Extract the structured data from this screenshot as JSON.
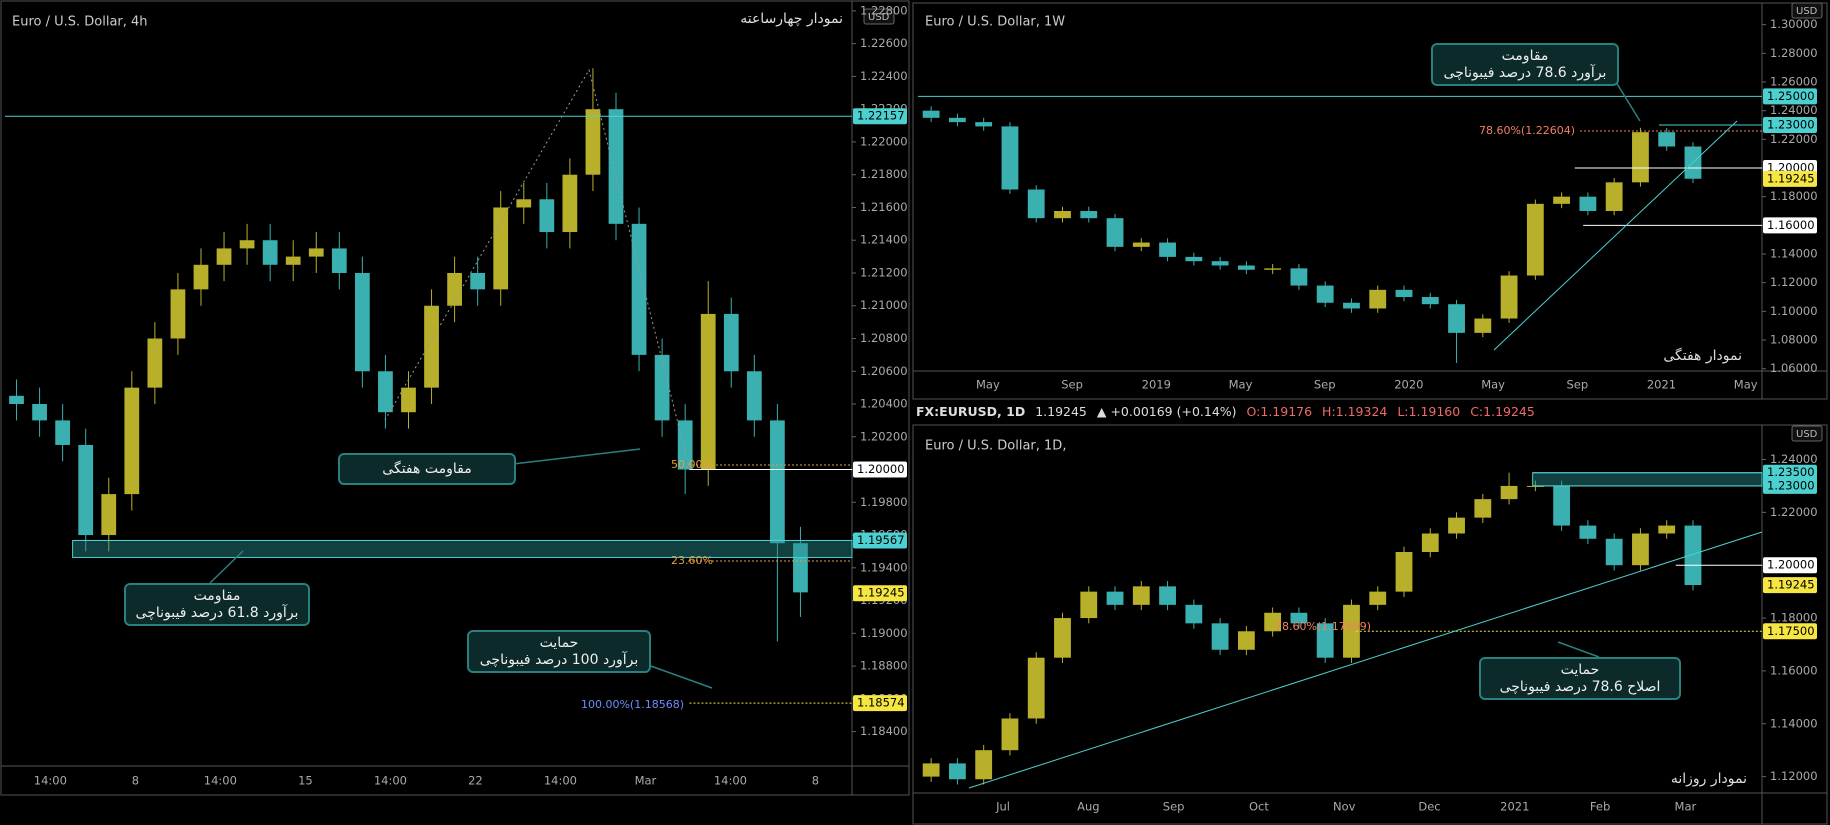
{
  "header": {
    "symbol": "FX:EURUSD, 1D",
    "last": "1.19245",
    "change": "▲ +0.00169 (+0.14%)",
    "ohlc": [
      "O:1.19176",
      "H:1.19324",
      "L:1.19160",
      "C:1.19245"
    ]
  },
  "chart_data": [
    {
      "type": "candlestick",
      "title": "Euro / U.S. Dollar, 4h",
      "subtitle": "نمودار چهارساعته",
      "currency": "USD",
      "ylim": [
        1.1819,
        1.2283
      ],
      "yticks": [
        {
          "value": 1.184,
          "label": "1.18400"
        },
        {
          "value": 1.186,
          "label": "1.18600"
        },
        {
          "value": 1.188,
          "label": "1.18800"
        },
        {
          "value": 1.19,
          "label": "1.19000"
        },
        {
          "value": 1.192,
          "label": "1.19200"
        },
        {
          "value": 1.194,
          "label": "1.19400"
        },
        {
          "value": 1.196,
          "label": "1.19600"
        },
        {
          "value": 1.198,
          "label": "1.19800"
        },
        {
          "value": 1.2,
          "label": "1.20000"
        },
        {
          "value": 1.202,
          "label": "1.20200"
        },
        {
          "value": 1.204,
          "label": "1.20400"
        },
        {
          "value": 1.206,
          "label": "1.20600"
        },
        {
          "value": 1.208,
          "label": "1.20800"
        },
        {
          "value": 1.21,
          "label": "1.21000"
        },
        {
          "value": 1.212,
          "label": "1.21200"
        },
        {
          "value": 1.214,
          "label": "1.21400"
        },
        {
          "value": 1.216,
          "label": "1.21600"
        },
        {
          "value": 1.218,
          "label": "1.21800"
        },
        {
          "value": 1.22,
          "label": "1.22000"
        },
        {
          "value": 1.222,
          "label": "1.22200"
        },
        {
          "value": 1.224,
          "label": "1.22400"
        },
        {
          "value": 1.226,
          "label": "1.22600"
        },
        {
          "value": 1.228,
          "label": "1.22800"
        }
      ],
      "xlabels": [
        "14:00",
        "8",
        "14:00",
        "15",
        "14:00",
        "22",
        "14:00",
        "Mar",
        "14:00",
        "8"
      ],
      "up_color": "#b8b02a",
      "down_color": "#3ab0b0",
      "open": [
        1.2045,
        1.204,
        1.203,
        1.2015,
        1.196,
        1.1985,
        1.205,
        1.208,
        1.211,
        1.2125,
        1.2135,
        1.214,
        1.2125,
        1.213,
        1.2135,
        1.212,
        1.206,
        1.2035,
        1.205,
        1.21,
        1.212,
        1.211,
        1.216,
        1.2165,
        1.2145,
        1.218,
        1.222,
        1.215,
        1.207,
        1.203,
        1.2,
        1.2095,
        1.206,
        1.203,
        1.1955
      ],
      "high": [
        1.2055,
        1.205,
        1.204,
        1.2025,
        1.1995,
        1.206,
        1.209,
        1.212,
        1.2135,
        1.2145,
        1.215,
        1.215,
        1.214,
        1.2145,
        1.2145,
        1.213,
        1.207,
        1.206,
        1.211,
        1.213,
        1.213,
        1.217,
        1.2175,
        1.2175,
        1.219,
        1.2245,
        1.223,
        1.216,
        1.208,
        1.204,
        1.2115,
        1.2105,
        1.207,
        1.204,
        1.1965
      ],
      "low": [
        1.203,
        1.202,
        1.2005,
        1.195,
        1.195,
        1.1975,
        1.204,
        1.207,
        1.21,
        1.2115,
        1.2125,
        1.2115,
        1.2115,
        1.212,
        1.211,
        1.205,
        1.2025,
        1.2025,
        1.204,
        1.209,
        1.21,
        1.21,
        1.215,
        1.2135,
        1.2135,
        1.217,
        1.214,
        1.206,
        1.202,
        1.1985,
        1.199,
        1.205,
        1.202,
        1.1895,
        1.191
      ],
      "close": [
        1.204,
        1.203,
        1.2015,
        1.196,
        1.1985,
        1.205,
        1.208,
        1.211,
        1.2125,
        1.2135,
        1.214,
        1.2125,
        1.213,
        1.2135,
        1.212,
        1.206,
        1.2035,
        1.205,
        1.21,
        1.212,
        1.211,
        1.216,
        1.2165,
        1.2145,
        1.218,
        1.222,
        1.215,
        1.207,
        1.203,
        1.2,
        1.2095,
        1.206,
        1.203,
        1.1955,
        1.1925
      ],
      "levels": [
        {
          "value": 1.22157,
          "label": "1.22157",
          "color": "#4dd0d0"
        },
        {
          "value": 1.2,
          "label": "1.20000",
          "color": "#ffffff"
        },
        {
          "value": 1.19567,
          "label": "1.19567",
          "color": "#4dd0d0"
        },
        {
          "value": 1.19245,
          "label": "1.19245",
          "color": "#f5e642"
        },
        {
          "value": 1.18574,
          "label": "1.18574",
          "color": "#f5e642"
        }
      ],
      "annotations": [
        "50.00%",
        "23.60%",
        "100.00%(1.18568)"
      ],
      "boxes": [
        [
          "مقاومت هفتگی"
        ],
        [
          "مقاومت",
          "برآورد 61.8 درصد فیبوناچی"
        ],
        [
          "حمایت",
          "برآورد 100 درصد فیبوناچی"
        ]
      ]
    },
    {
      "type": "candlestick",
      "title": "Euro / U.S. Dollar, 1W",
      "subtitle": "نمودار هفتگی",
      "currency": "USD",
      "ylim": [
        1.0584,
        1.313
      ],
      "yticks": [
        {
          "value": 1.06,
          "label": "1.06000"
        },
        {
          "value": 1.08,
          "label": "1.08000"
        },
        {
          "value": 1.1,
          "label": "1.10000"
        },
        {
          "value": 1.12,
          "label": "1.12000"
        },
        {
          "value": 1.14,
          "label": "1.14000"
        },
        {
          "value": 1.16,
          "label": "1.16000"
        },
        {
          "value": 1.18,
          "label": "1.18000"
        },
        {
          "value": 1.2,
          "label": "1.20000"
        },
        {
          "value": 1.22,
          "label": "1.22000"
        },
        {
          "value": 1.24,
          "label": "1.24000"
        },
        {
          "value": 1.26,
          "label": "1.26000"
        },
        {
          "value": 1.28,
          "label": "1.28000"
        },
        {
          "value": 1.3,
          "label": "1.30000"
        }
      ],
      "xlabels": [
        "May",
        "Sep",
        "2019",
        "May",
        "Sep",
        "2020",
        "May",
        "Sep",
        "2021",
        "May"
      ],
      "up_color": "#b8b02a",
      "down_color": "#3ab0b0",
      "open": [
        1.24,
        1.235,
        1.232,
        1.229,
        1.185,
        1.165,
        1.17,
        1.165,
        1.145,
        1.148,
        1.138,
        1.135,
        1.132,
        1.129,
        1.13,
        1.118,
        1.106,
        1.102,
        1.115,
        1.11,
        1.105,
        1.085,
        1.095,
        1.125,
        1.175,
        1.18,
        1.17,
        1.19,
        1.225,
        1.215
      ],
      "high": [
        1.243,
        1.238,
        1.235,
        1.232,
        1.188,
        1.173,
        1.173,
        1.168,
        1.151,
        1.151,
        1.141,
        1.138,
        1.135,
        1.133,
        1.133,
        1.121,
        1.109,
        1.118,
        1.118,
        1.113,
        1.108,
        1.098,
        1.128,
        1.178,
        1.183,
        1.183,
        1.193,
        1.228,
        1.228,
        1.218
      ],
      "low": [
        1.232,
        1.229,
        1.226,
        1.182,
        1.162,
        1.162,
        1.162,
        1.142,
        1.142,
        1.135,
        1.132,
        1.129,
        1.126,
        1.126,
        1.115,
        1.103,
        1.099,
        1.099,
        1.107,
        1.102,
        1.064,
        1.082,
        1.092,
        1.122,
        1.172,
        1.167,
        1.167,
        1.187,
        1.212,
        1.1895
      ],
      "close": [
        1.235,
        1.232,
        1.229,
        1.185,
        1.165,
        1.17,
        1.165,
        1.145,
        1.148,
        1.138,
        1.135,
        1.132,
        1.129,
        1.13,
        1.118,
        1.106,
        1.102,
        1.115,
        1.11,
        1.105,
        1.085,
        1.095,
        1.125,
        1.175,
        1.18,
        1.17,
        1.19,
        1.225,
        1.215,
        1.1925
      ],
      "levels": [
        {
          "value": 1.25,
          "label": "1.25000",
          "color": "#4dd0d0"
        },
        {
          "value": 1.23,
          "label": "1.23000",
          "color": "#4dd0d0"
        },
        {
          "value": 1.2,
          "label": "1.20000",
          "color": "#ffffff"
        },
        {
          "value": 1.19245,
          "label": "1.19245",
          "color": "#f5e642"
        },
        {
          "value": 1.16,
          "label": "1.16000",
          "color": "#ffffff"
        }
      ],
      "annotations": [
        "78.60%(1.22604)"
      ],
      "boxes": [
        [
          "مقاومت",
          "برآورد 78.6 درصد فیبوناچی"
        ]
      ]
    },
    {
      "type": "candlestick",
      "title": "Euro / U.S. Dollar, 1D,",
      "subtitle": "نمودار روزانه",
      "currency": "USD",
      "ylim": [
        1.1138,
        1.2523
      ],
      "yticks": [
        {
          "value": 1.12,
          "label": "1.12000"
        },
        {
          "value": 1.14,
          "label": "1.14000"
        },
        {
          "value": 1.16,
          "label": "1.16000"
        },
        {
          "value": 1.18,
          "label": "1.18000"
        },
        {
          "value": 1.2,
          "label": "1.20000"
        },
        {
          "value": 1.22,
          "label": "1.22000"
        },
        {
          "value": 1.24,
          "label": "1.24000"
        }
      ],
      "xlabels": [
        "Jul",
        "Aug",
        "Sep",
        "Oct",
        "Nov",
        "Dec",
        "2021",
        "Feb",
        "Mar"
      ],
      "up_color": "#b8b02a",
      "down_color": "#3ab0b0",
      "open": [
        1.12,
        1.125,
        1.119,
        1.13,
        1.142,
        1.165,
        1.18,
        1.19,
        1.185,
        1.192,
        1.185,
        1.178,
        1.168,
        1.175,
        1.182,
        1.178,
        1.165,
        1.185,
        1.19,
        1.205,
        1.212,
        1.218,
        1.225,
        1.23,
        1.23,
        1.215,
        1.21,
        1.2,
        1.212,
        1.215
      ],
      "high": [
        1.127,
        1.127,
        1.132,
        1.144,
        1.167,
        1.182,
        1.192,
        1.192,
        1.194,
        1.194,
        1.187,
        1.18,
        1.177,
        1.184,
        1.184,
        1.18,
        1.187,
        1.192,
        1.207,
        1.214,
        1.22,
        1.227,
        1.235,
        1.232,
        1.232,
        1.217,
        1.212,
        1.214,
        1.217,
        1.217
      ],
      "low": [
        1.118,
        1.117,
        1.117,
        1.128,
        1.14,
        1.163,
        1.178,
        1.183,
        1.183,
        1.183,
        1.176,
        1.166,
        1.166,
        1.173,
        1.176,
        1.163,
        1.163,
        1.183,
        1.188,
        1.203,
        1.21,
        1.216,
        1.223,
        1.228,
        1.213,
        1.208,
        1.198,
        1.198,
        1.21,
        1.1905
      ],
      "close": [
        1.125,
        1.119,
        1.13,
        1.142,
        1.165,
        1.18,
        1.19,
        1.185,
        1.192,
        1.185,
        1.178,
        1.168,
        1.175,
        1.182,
        1.178,
        1.165,
        1.185,
        1.19,
        1.205,
        1.212,
        1.218,
        1.225,
        1.23,
        1.23,
        1.215,
        1.21,
        1.2,
        1.212,
        1.215,
        1.1925
      ],
      "levels": [
        {
          "value": 1.235,
          "label": "1.23500",
          "color": "#4dd0d0"
        },
        {
          "value": 1.23,
          "label": "1.23000",
          "color": "#4dd0d0"
        },
        {
          "value": 1.2,
          "label": "1.20000",
          "color": "#ffffff"
        },
        {
          "value": 1.19245,
          "label": "1.19245",
          "color": "#f5e642"
        },
        {
          "value": 1.175,
          "label": "1.17500",
          "color": "#f5e642"
        }
      ],
      "annotations": [
        "78.60%(1.17699)"
      ],
      "boxes": [
        [
          "حمایت",
          "اصلاح 78.6 درصد فیبوناچی"
        ]
      ]
    }
  ]
}
